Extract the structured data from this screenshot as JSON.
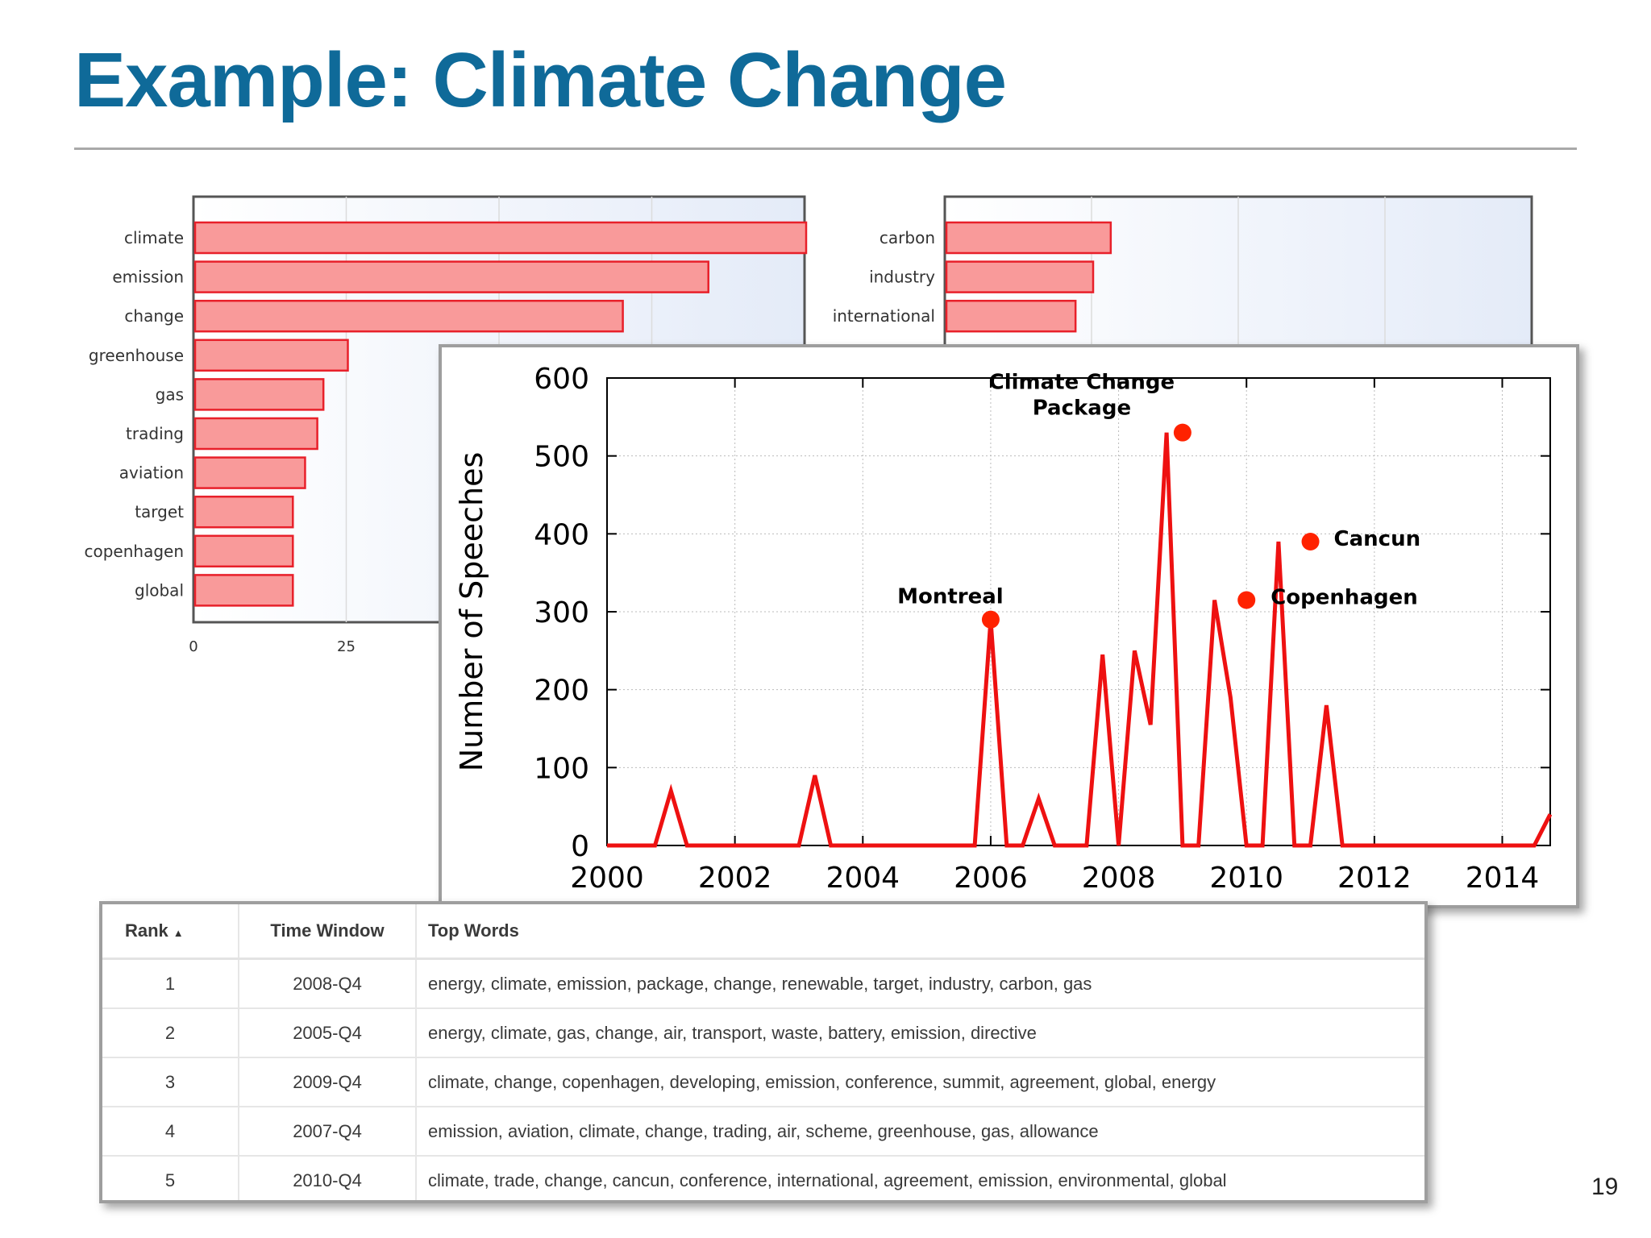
{
  "slide": {
    "title": "Example: Climate Change",
    "page_number": "19"
  },
  "colors": {
    "title": "#0f6a99",
    "bar_fill": "#f99a9a",
    "bar_stroke": "#e8202a",
    "line": "#ee1111",
    "marker": "#ff2200"
  },
  "chart_data": [
    {
      "type": "bar",
      "orientation": "horizontal",
      "categories": [
        "climate",
        "emission",
        "change",
        "greenhouse",
        "gas",
        "trading",
        "aviation",
        "target",
        "copenhagen",
        "global"
      ],
      "values": [
        100,
        84,
        70,
        25,
        21,
        20,
        18,
        16,
        16,
        16
      ],
      "x_ticks": [
        "0",
        "25"
      ],
      "xlim": [
        0,
        100
      ],
      "grid": true
    },
    {
      "type": "bar",
      "orientation": "horizontal",
      "categories": [
        "carbon",
        "industry",
        "international"
      ],
      "values": [
        28,
        25,
        22
      ],
      "grid": true
    },
    {
      "type": "line",
      "ylabel": "Number of Speeches",
      "x_ticks": [
        "2000",
        "2002",
        "2004",
        "2006",
        "2008",
        "2010",
        "2012",
        "2014"
      ],
      "y_ticks": [
        "0",
        "100",
        "200",
        "300",
        "400",
        "500",
        "600"
      ],
      "xlim": [
        2000,
        2014.75
      ],
      "ylim": [
        0,
        600
      ],
      "grid": true,
      "x": [
        2000,
        2000.25,
        2000.5,
        2000.75,
        2001,
        2001.25,
        2001.5,
        2001.75,
        2002,
        2002.25,
        2002.5,
        2002.75,
        2003,
        2003.25,
        2003.5,
        2003.75,
        2004,
        2004.25,
        2004.5,
        2004.75,
        2005,
        2005.25,
        2005.5,
        2005.75,
        2006,
        2006.25,
        2006.5,
        2006.75,
        2007,
        2007.25,
        2007.5,
        2007.75,
        2008,
        2008.25,
        2008.5,
        2008.75,
        2009,
        2009.25,
        2009.5,
        2009.75,
        2010,
        2010.25,
        2010.5,
        2010.75,
        2011,
        2011.25,
        2011.5,
        2011.75,
        2012,
        2012.25,
        2012.5,
        2012.75,
        2013,
        2013.25,
        2013.5,
        2013.75,
        2014,
        2014.25,
        2014.5,
        2014.75
      ],
      "series": [
        {
          "values": [
            0,
            0,
            0,
            0,
            70,
            0,
            0,
            0,
            0,
            0,
            0,
            0,
            0,
            90,
            0,
            0,
            0,
            0,
            0,
            0,
            0,
            0,
            0,
            0,
            290,
            0,
            0,
            60,
            0,
            0,
            0,
            245,
            0,
            250,
            155,
            530,
            0,
            0,
            315,
            190,
            0,
            0,
            390,
            0,
            0,
            180,
            0,
            0,
            0,
            0,
            0,
            0,
            0,
            0,
            0,
            0,
            0,
            0,
            0,
            40
          ]
        }
      ],
      "annotations": [
        {
          "text": "Montreal",
          "x": 2006,
          "y": 290
        },
        {
          "text": "Climate Change Package",
          "x": 2009,
          "y": 530
        },
        {
          "text": "Copenhagen",
          "x": 2010,
          "y": 315
        },
        {
          "text": "Cancun",
          "x": 2011,
          "y": 390
        }
      ]
    }
  ],
  "table": {
    "headers": {
      "rank": "Rank",
      "time_window": "Time Window",
      "top_words": "Top Words"
    },
    "rows": [
      {
        "rank": "1",
        "time_window": "2008-Q4",
        "top_words": "energy, climate, emission, package, change, renewable, target, industry, carbon, gas"
      },
      {
        "rank": "2",
        "time_window": "2005-Q4",
        "top_words": "energy, climate, gas, change, air, transport, waste, battery, emission, directive"
      },
      {
        "rank": "3",
        "time_window": "2009-Q4",
        "top_words": "climate, change, copenhagen, developing, emission, conference, summit, agreement, global, energy"
      },
      {
        "rank": "4",
        "time_window": "2007-Q4",
        "top_words": "emission, aviation, climate, change, trading, air, scheme, greenhouse, gas, allowance"
      },
      {
        "rank": "5",
        "time_window": "2010-Q4",
        "top_words": "climate, trade, change, cancun, conference, international, agreement, emission, environmental, global"
      }
    ]
  }
}
